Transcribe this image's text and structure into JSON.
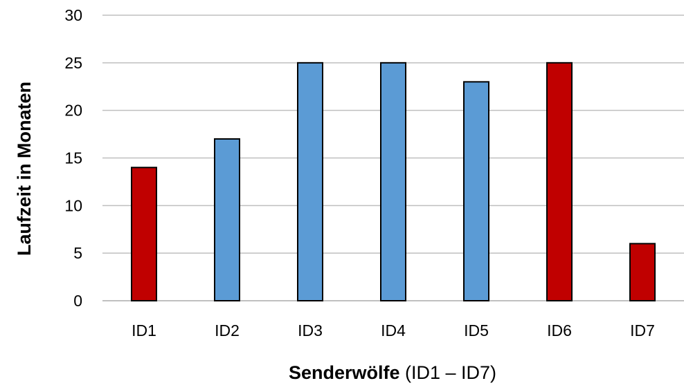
{
  "chart_data": {
    "type": "bar",
    "categories": [
      "ID1",
      "ID2",
      "ID3",
      "ID4",
      "ID5",
      "ID6",
      "ID7"
    ],
    "values": [
      14,
      17,
      25,
      25,
      23,
      25,
      6
    ],
    "bar_colors": [
      "#C00000",
      "#5B9BD5",
      "#5B9BD5",
      "#5B9BD5",
      "#5B9BD5",
      "#C00000",
      "#C00000"
    ],
    "bar_outline_color": "#000000",
    "ylabel": "Laufzeit in Monaten",
    "xlabel_bold": "Senderwölfe",
    "xlabel_rest": " (ID1 – ID7)",
    "ylim": [
      0,
      30
    ],
    "yticks": [
      0,
      5,
      10,
      15,
      20,
      25,
      30
    ],
    "grid": true,
    "grid_color": "#BFBFBF",
    "legend": "none"
  }
}
